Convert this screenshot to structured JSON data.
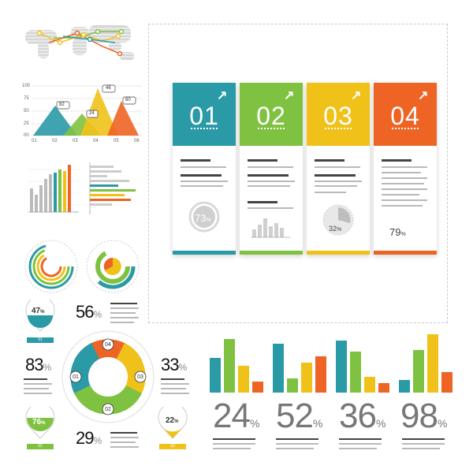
{
  "colors": {
    "teal": "#2a9aa6",
    "green": "#7fc241",
    "yellow": "#f0c219",
    "orange": "#ee6424",
    "gray": "#aaaaaa"
  },
  "cards": [
    {
      "number": "01",
      "color": "#2a9aa6"
    },
    {
      "number": "02",
      "color": "#7fc241"
    },
    {
      "number": "03",
      "color": "#f0c219"
    },
    {
      "number": "04",
      "color": "#ee6424"
    }
  ],
  "card_stats": {
    "donut": "73",
    "pie": "32",
    "value": "79",
    "unit": "%"
  },
  "peak_chart": {
    "y_ticks": [
      "100",
      "75",
      "50",
      "25",
      "00"
    ],
    "x_ticks": [
      "01",
      "02",
      "03",
      "04",
      "05",
      "06"
    ],
    "labels": [
      "82",
      "24",
      "46",
      "60"
    ]
  },
  "left_stats": [
    {
      "value": "47",
      "unit": "%",
      "tag": "01"
    },
    {
      "value": "76",
      "unit": "%",
      "tag": "02"
    },
    {
      "value": "22",
      "unit": "%",
      "tag": "03"
    }
  ],
  "cycle": {
    "segments": [
      "04",
      "01",
      "03",
      "02"
    ],
    "values": [
      {
        "label": "56",
        "unit": "%"
      },
      {
        "label": "83",
        "unit": "%"
      },
      {
        "label": "33",
        "unit": "%"
      },
      {
        "label": "29",
        "unit": "%"
      }
    ]
  },
  "bar_groups": [
    {
      "value": "24",
      "unit": "%"
    },
    {
      "value": "52",
      "unit": "%"
    },
    {
      "value": "36",
      "unit": "%"
    },
    {
      "value": "98",
      "unit": "%"
    }
  ]
}
